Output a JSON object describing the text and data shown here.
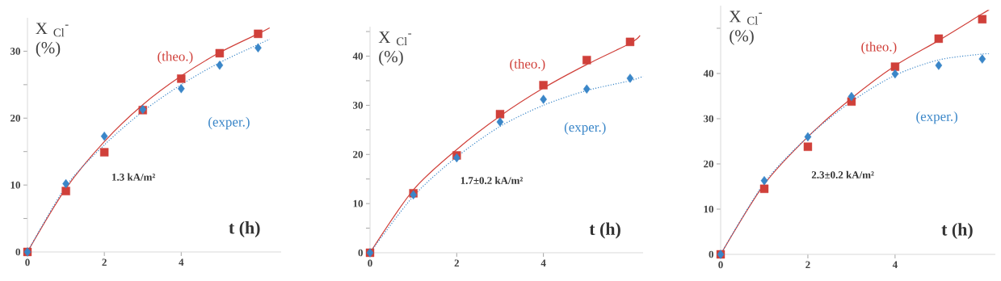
{
  "chart_data": [
    {
      "type": "scatter",
      "xlabel": "t (h)",
      "ylabel": "X $_{Cl}$$^{-}$ (%)",
      "annotations": [
        "1.3 kA/m²"
      ],
      "xlim": [
        0,
        6.6
      ],
      "ylim": [
        0,
        35
      ],
      "xticks": [
        0,
        2,
        4
      ],
      "yticks": [
        0,
        {
          "value": 5,
          "label": null
        },
        10,
        {
          "value": 15,
          "label": null
        },
        20,
        {
          "value": 25,
          "label": null
        },
        30
      ],
      "grid": false,
      "legend": false,
      "series": [
        {
          "name": "(theo.)",
          "marker": "square",
          "color": "#d0403a",
          "x": [
            0,
            1,
            2,
            3,
            4,
            5,
            6
          ],
          "values": [
            0,
            9.1,
            14.9,
            21.2,
            25.9,
            29.7,
            32.6
          ]
        },
        {
          "name": "(exper.)",
          "marker": "diamond",
          "color": "#3a86c8",
          "x": [
            0,
            1,
            2,
            3,
            4,
            5,
            6
          ],
          "values": [
            0,
            10.2,
            17.3,
            21.3,
            24.4,
            27.9,
            30.5
          ]
        },
        {
          "type": "line",
          "line_style": "solid",
          "color": "#d0403a",
          "x": [
            0,
            1,
            2,
            3,
            4,
            5,
            6,
            6.3
          ],
          "values": [
            0,
            9.5,
            16.5,
            22,
            26.3,
            29.8,
            32.6,
            33.5
          ]
        },
        {
          "type": "line",
          "line_style": "dotted",
          "color": "#3a86c8",
          "x": [
            0,
            1,
            2,
            3,
            4,
            5,
            6,
            6.3
          ],
          "values": [
            0,
            9.8,
            16,
            21,
            25,
            28.3,
            31,
            31.8
          ]
        }
      ]
    },
    {
      "type": "scatter",
      "xlabel": "t (h)",
      "ylabel": "X $_{Cl}$$^{-}$ (%)",
      "annotations": [
        "1.7±0.2 kA/m²"
      ],
      "xlim": [
        0,
        6.3
      ],
      "ylim": [
        0,
        46
      ],
      "xticks": [
        0,
        2,
        4
      ],
      "yticks": [
        0,
        {
          "value": 5,
          "label": null
        },
        10,
        {
          "value": 15,
          "label": null
        },
        20,
        {
          "value": 25,
          "label": null
        },
        30,
        {
          "value": 35,
          "label": null
        },
        40,
        {
          "value": 45,
          "label": null
        }
      ],
      "grid": false,
      "legend": false,
      "series": [
        {
          "name": "(theo.)",
          "marker": "square",
          "color": "#d0403a",
          "x": [
            0,
            1,
            2,
            3,
            4,
            5,
            6
          ],
          "values": [
            0,
            12.1,
            19.8,
            28.2,
            34.1,
            39.2,
            42.9
          ]
        },
        {
          "name": "(exper.)",
          "marker": "diamond",
          "color": "#3a86c8",
          "x": [
            0,
            1,
            2,
            3,
            4,
            5,
            6
          ],
          "values": [
            0,
            11.8,
            19.3,
            26.6,
            31.2,
            33.3,
            35.5
          ]
        },
        {
          "type": "line",
          "line_style": "solid",
          "color": "#d0403a",
          "x": [
            0,
            1,
            2,
            3,
            4,
            5,
            6,
            6.23
          ],
          "values": [
            0,
            12.8,
            21,
            27.8,
            33.5,
            38.3,
            42.6,
            44.2
          ]
        },
        {
          "type": "line",
          "line_style": "dotted",
          "color": "#3a86c8",
          "x": [
            0,
            1,
            2,
            3,
            4,
            5,
            6,
            6.3
          ],
          "values": [
            0,
            11.5,
            19.5,
            25.7,
            30,
            33,
            35,
            35.9
          ]
        }
      ]
    },
    {
      "type": "scatter",
      "xlabel": "t (h)",
      "ylabel": "X $_{Cl}$$^{-}$ (%)",
      "annotations": [
        "2.3±0.2 kA/m²"
      ],
      "xlim": [
        0,
        6.3
      ],
      "ylim": [
        0,
        55
      ],
      "xticks": [
        0,
        2,
        4
      ],
      "yticks": [
        0,
        10,
        20,
        30,
        40,
        {
          "value": 50,
          "label": null
        }
      ],
      "grid": false,
      "legend": false,
      "series": [
        {
          "name": "(theo.)",
          "marker": "square",
          "color": "#d0403a",
          "x": [
            0,
            1,
            2,
            3,
            4,
            5,
            6
          ],
          "values": [
            0,
            14.5,
            23.8,
            33.8,
            41.5,
            47.7,
            52.0
          ]
        },
        {
          "name": "(exper.)",
          "marker": "diamond",
          "color": "#3a86c8",
          "x": [
            0,
            1,
            2,
            3,
            4,
            5,
            6
          ],
          "values": [
            0,
            16.3,
            26.0,
            34.9,
            39.9,
            41.8,
            43.2
          ]
        },
        {
          "type": "line",
          "line_style": "solid",
          "color": "#d0403a",
          "x": [
            0,
            1,
            2,
            3,
            4,
            5,
            6,
            6.15
          ],
          "values": [
            0,
            15.5,
            26,
            34.5,
            41.7,
            47.3,
            53.2,
            54
          ]
        },
        {
          "type": "line",
          "line_style": "dotted",
          "color": "#3a86c8",
          "x": [
            0,
            1,
            2,
            3,
            4,
            5,
            6,
            6.15
          ],
          "values": [
            0,
            15.8,
            26,
            33.8,
            39.6,
            43,
            44.3,
            44.3
          ]
        }
      ]
    }
  ]
}
